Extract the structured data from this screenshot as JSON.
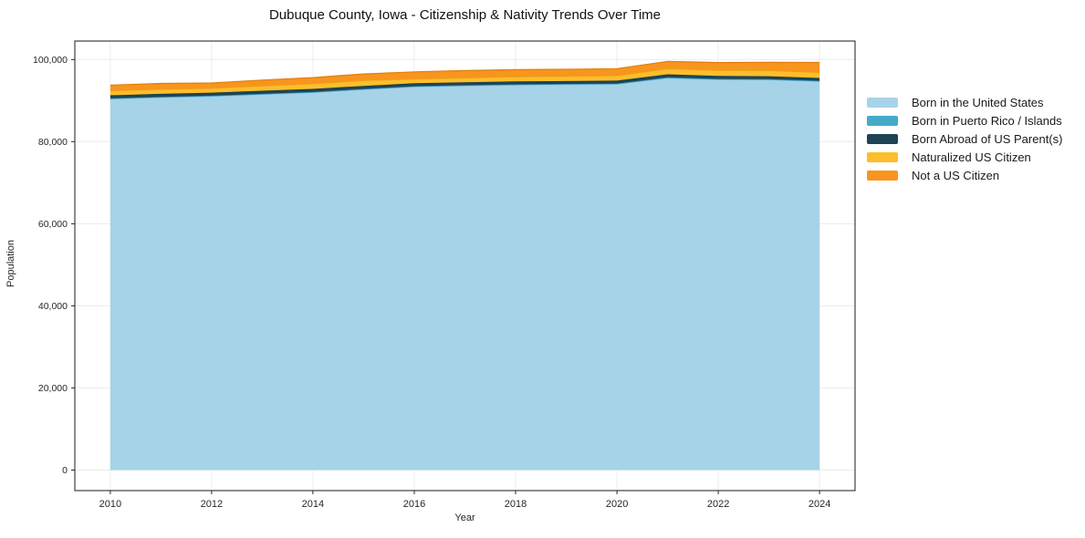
{
  "page": {
    "title": "Dubuque County, Iowa - Citizenship & Nativity Trends Over Time"
  },
  "chart_data": {
    "type": "area",
    "stacked": true,
    "title": "Dubuque County, Iowa - Citizenship & Nativity Trends Over Time",
    "xlabel": "Year",
    "ylabel": "Population",
    "x": [
      2010,
      2011,
      2012,
      2013,
      2014,
      2015,
      2016,
      2017,
      2018,
      2019,
      2020,
      2021,
      2022,
      2023,
      2024
    ],
    "series": [
      {
        "name": "Born in the United States",
        "color": "#A6D3E8",
        "edge": "#85BFDC",
        "values": [
          90400,
          90750,
          91050,
          91500,
          91950,
          92700,
          93350,
          93600,
          93800,
          93900,
          94000,
          95450,
          95100,
          95050,
          94650
        ]
      },
      {
        "name": "Born in Puerto Rico / Islands",
        "color": "#45AAC8",
        "edge": "#2F8FAE",
        "values": [
          150,
          150,
          140,
          150,
          150,
          150,
          150,
          160,
          150,
          150,
          160,
          200,
          180,
          170,
          180
        ]
      },
      {
        "name": "Born Abroad of US Parent(s)",
        "color": "#1E4456",
        "edge": "#173947",
        "values": [
          740,
          750,
          740,
          750,
          740,
          730,
          720,
          700,
          720,
          710,
          700,
          750,
          720,
          700,
          670
        ]
      },
      {
        "name": "Naturalized US Citizen",
        "color": "#FCBE2C",
        "edge": "#E9A81A",
        "values": [
          1110,
          1080,
          1050,
          1150,
          1250,
          1300,
          1000,
          1050,
          1100,
          1150,
          1200,
          1350,
          1350,
          1380,
          1340
        ]
      },
      {
        "name": "Not a US Citizen",
        "color": "#F8951D",
        "edge": "#E07F0E",
        "values": [
          1340,
          1450,
          1300,
          1450,
          1500,
          1600,
          1780,
          1800,
          1750,
          1700,
          1700,
          1800,
          1900,
          2000,
          2450
        ]
      }
    ],
    "xlim": [
      2009.3,
      2024.7
    ],
    "ylim": [
      -5000,
      104500
    ],
    "xticks": {
      "values": [
        2010,
        2012,
        2014,
        2016,
        2018,
        2020,
        2022,
        2024
      ],
      "labels": [
        "2010",
        "2012",
        "2014",
        "2016",
        "2018",
        "2020",
        "2022",
        "2024"
      ]
    },
    "yticks": {
      "values": [
        0,
        20000,
        40000,
        60000,
        80000,
        100000
      ],
      "labels": [
        "0",
        "20,000",
        "40,000",
        "60,000",
        "80,000",
        "100,000"
      ]
    },
    "grid": true,
    "grid_color": "#ECECEC",
    "spine_color": "#1a1a1a",
    "tick_color": "#262626",
    "legend_position": "right-outside"
  }
}
